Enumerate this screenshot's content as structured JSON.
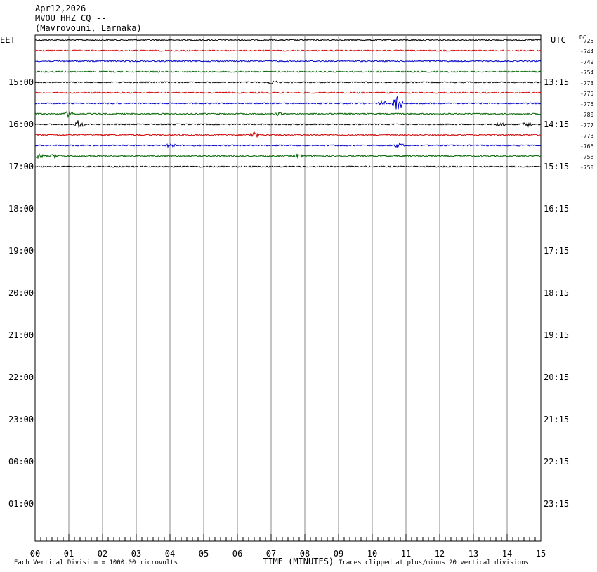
{
  "header": {
    "date": "Apr12,2026",
    "station": "MVOU HHZ CQ --",
    "location": "(Mavrovouni, Larnaka)"
  },
  "left_timezone": "EET",
  "right_timezone": "UTC",
  "dc_label": "DC",
  "footer": {
    "scale": "Each Vertical Division = 1000.00 microvolts",
    "xlabel": "TIME (MINUTES)",
    "clip_note": "Traces clipped at plus/minus 20 vertical divisions"
  },
  "chart_data": {
    "type": "line",
    "title": "MVOU HHZ CQ --",
    "xlabel": "TIME (MINUTES)",
    "xlim": [
      0,
      15
    ],
    "x_ticks": [
      "00",
      "01",
      "02",
      "03",
      "04",
      "05",
      "06",
      "07",
      "08",
      "09",
      "10",
      "11",
      "12",
      "13",
      "14",
      "15"
    ],
    "left_hour_labels": [
      "15:00",
      "16:00",
      "17:00",
      "18:00",
      "19:00",
      "20:00",
      "21:00",
      "22:00",
      "23:00",
      "00:00",
      "01:00"
    ],
    "right_hour_labels": [
      "13:15",
      "14:15",
      "15:15",
      "16:15",
      "17:15",
      "18:15",
      "19:15",
      "20:15",
      "21:15",
      "22:15",
      "23:15"
    ],
    "trace_colors": [
      "#000000",
      "#d00000",
      "#0000c8",
      "#006400"
    ],
    "grid": "vertical lines each minute",
    "traces": [
      {
        "dc": "-725",
        "color": "#000000",
        "events": []
      },
      {
        "dc": "-744",
        "color": "#d00000",
        "events": []
      },
      {
        "dc": "-749",
        "color": "#0000c8",
        "events": []
      },
      {
        "dc": "-754",
        "color": "#006400",
        "events": []
      },
      {
        "dc": "-773",
        "color": "#000000",
        "events": [
          {
            "minute": 7.05,
            "amp": 3
          }
        ]
      },
      {
        "dc": "-775",
        "color": "#d00000",
        "events": []
      },
      {
        "dc": "-775",
        "color": "#0000c8",
        "events": [
          {
            "minute": 10.75,
            "amp": 14
          },
          {
            "minute": 10.3,
            "amp": 3
          }
        ]
      },
      {
        "dc": "-780",
        "color": "#006400",
        "events": [
          {
            "minute": 1.0,
            "amp": 4
          },
          {
            "minute": 7.2,
            "amp": 2
          }
        ]
      },
      {
        "dc": "-777",
        "color": "#000000",
        "events": [
          {
            "minute": 1.3,
            "amp": 6
          },
          {
            "minute": 13.8,
            "amp": 4
          },
          {
            "minute": 14.6,
            "amp": 3
          }
        ]
      },
      {
        "dc": "-773",
        "color": "#d00000",
        "events": [
          {
            "minute": 6.5,
            "amp": 5
          }
        ]
      },
      {
        "dc": "-766",
        "color": "#0000c8",
        "events": [
          {
            "minute": 4.0,
            "amp": 4
          },
          {
            "minute": 10.8,
            "amp": 3
          }
        ]
      },
      {
        "dc": "-758",
        "color": "#006400",
        "events": [
          {
            "minute": 0.1,
            "amp": 4
          },
          {
            "minute": 0.6,
            "amp": 3
          },
          {
            "minute": 7.8,
            "amp": 3
          }
        ]
      },
      {
        "dc": "-750",
        "color": "#000000",
        "events": []
      }
    ]
  }
}
